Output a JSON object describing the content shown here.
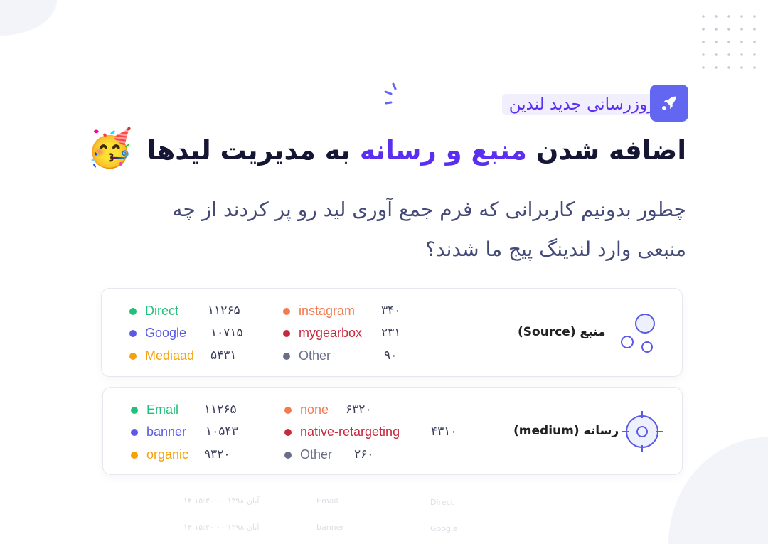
{
  "badge": {
    "text": "در بروزرسانی جدید لندین",
    "icon": "rocket-icon"
  },
  "title": {
    "part1": "اضافه شدن",
    "highlight": "منبع و رسانه",
    "part2": "به مدیریت لیدها",
    "emoji": "🥳"
  },
  "subtitle": {
    "line1": "چطور بدونیم کاربرانی که فرم جمع آوری لید رو پر کردند از چه",
    "line2": "منبعی وارد لندینگ پیج ما شدند؟"
  },
  "colors": {
    "accent": "#5b2ff0",
    "green": "#22c07a",
    "blue": "#5a5ae6",
    "orange": "#f5a20a",
    "coral": "#f47a50",
    "red": "#c8283c",
    "gray": "#6b6e8a"
  },
  "source": {
    "label": "منبع (Source)",
    "icon": "bubbles-icon",
    "items": [
      {
        "name": "Direct",
        "value": "۱۱۲۶۵",
        "color": "#22c07a"
      },
      {
        "name": "Google",
        "value": "۱۰۷۱۵",
        "color": "#5a5ae6"
      },
      {
        "name": "Mediaad",
        "value": "۵۴۳۱",
        "color": "#f5a20a"
      },
      {
        "name": "instagram",
        "value": "۳۴۰",
        "color": "#f47a50"
      },
      {
        "name": "mygearbox",
        "value": "۲۳۱",
        "color": "#c8283c"
      },
      {
        "name": "Other",
        "value": "۹۰",
        "color": "#6b6e8a"
      }
    ]
  },
  "medium": {
    "label": "رسانه (medium)",
    "icon": "target-icon",
    "items": [
      {
        "name": "Email",
        "value": "۱۱۲۶۵",
        "color": "#22c07a"
      },
      {
        "name": "banner",
        "value": "۱۰۵۴۳",
        "color": "#5a5ae6"
      },
      {
        "name": "organic",
        "value": "۹۳۲۰",
        "color": "#f5a20a"
      },
      {
        "name": "none",
        "value": "۶۳۲۰",
        "color": "#f47a50"
      },
      {
        "name": "native-retargeting",
        "value": "۴۳۱۰",
        "color": "#c8283c"
      },
      {
        "name": "Other",
        "value": "۲۶۰",
        "color": "#6b6e8a"
      }
    ]
  },
  "background_table": {
    "rows": [
      {
        "date": "۱۴ آبان ۱۳۹۸ ۱۵:۳۰:۰۰",
        "medium": "Email",
        "source": "Direct"
      },
      {
        "date": "۱۴ آبان ۱۳۹۸ ۱۵:۳۰:۰۰",
        "medium": "banner",
        "source": "Google"
      }
    ]
  }
}
